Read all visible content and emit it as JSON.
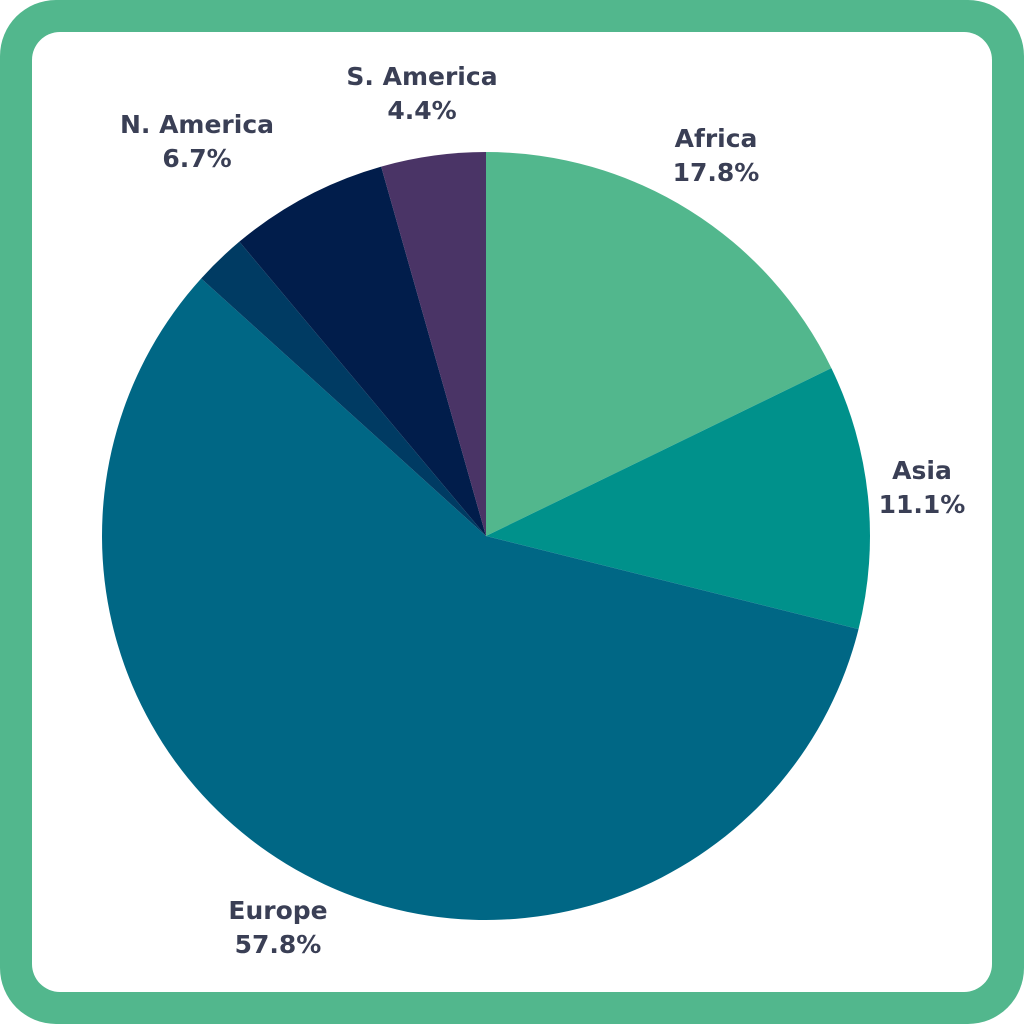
{
  "chart_data": {
    "type": "pie",
    "title": "",
    "frame_color": "#52b78d",
    "label_color": "#3a3f55",
    "slices": [
      {
        "label": "Africa",
        "value_label": "17.8%",
        "value": 17.8,
        "color": "#52b78d"
      },
      {
        "label": "Asia",
        "value_label": "11.1%",
        "value": 11.1,
        "color": "#00918b"
      },
      {
        "label": "Europe",
        "value_label": "57.8%",
        "value": 57.8,
        "color": "#006785"
      },
      {
        "label": "",
        "value_label": "",
        "value": 2.2,
        "color": "#003b63"
      },
      {
        "label": "N. America",
        "value_label": "6.7%",
        "value": 6.7,
        "color": "#011d4b"
      },
      {
        "label": "S. America",
        "value_label": "4.4%",
        "value": 4.4,
        "color": "#4a3466"
      }
    ]
  }
}
